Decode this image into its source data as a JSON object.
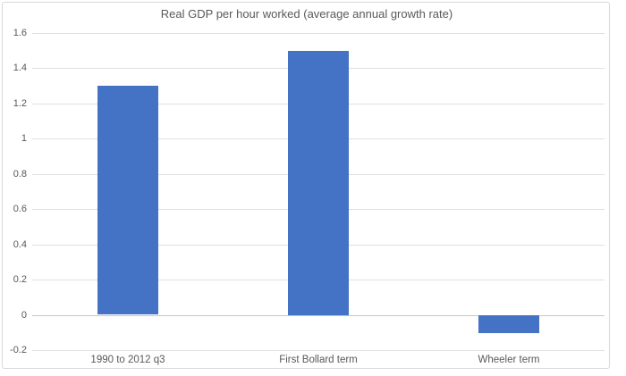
{
  "chart_data": {
    "type": "bar",
    "title": "Real GDP per hour worked (average annual growth rate)",
    "categories": [
      "1990 to 2012 q3",
      "First Bollard term",
      "Wheeler term"
    ],
    "values": [
      1.3,
      1.5,
      -0.1
    ],
    "xlabel": "",
    "ylabel": "",
    "ylim": [
      -0.2,
      1.6
    ],
    "ytick_values": [
      1.6,
      1.4,
      1.2,
      1,
      0.8,
      0.6,
      0.4,
      0.2,
      0,
      -0.2
    ],
    "ytick_labels": [
      "1.6",
      "1.4",
      "1.2",
      "1",
      "0.8",
      "0.6",
      "0.4",
      "0.2",
      "0",
      "-0.2"
    ],
    "grid": true,
    "legend": false,
    "bar_color": "#4472C4",
    "grid_color": "#E0E0E0",
    "zero_axis_color": "#C6C6C6",
    "text_color": "#595959",
    "frame_border_color": "#D9D9D9"
  }
}
